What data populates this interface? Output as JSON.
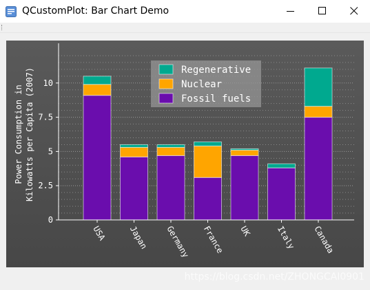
{
  "window": {
    "title": "QCustomPlot: Bar Chart Demo",
    "controls": [
      "minimize-icon",
      "maximize-icon",
      "close-icon"
    ]
  },
  "watermark": "https://blog.csdn.net/ZHONGCAI0901",
  "chart_data": {
    "type": "bar",
    "stacked": true,
    "categories": [
      "USA",
      "Japan",
      "Germany",
      "France",
      "UK",
      "Italy",
      "Canada"
    ],
    "series": [
      {
        "name": "Fossil fuels",
        "color": "#6a0dad",
        "values": [
          9.1,
          4.6,
          4.7,
          3.1,
          4.7,
          3.8,
          7.5
        ]
      },
      {
        "name": "Nuclear",
        "color": "#ffa500",
        "values": [
          0.8,
          0.7,
          0.6,
          2.3,
          0.4,
          0,
          0.8
        ]
      },
      {
        "name": "Regenerative",
        "color": "#00a98f",
        "values": [
          0.6,
          0.2,
          0.2,
          0.3,
          0.1,
          0.3,
          2.8
        ]
      }
    ],
    "legend": [
      "Regenerative",
      "Nuclear",
      "Fossil fuels"
    ],
    "legend_position": "top-center",
    "ylabel": "Power Consumption in\nKilowatts per Capita (2007)",
    "yticks": [
      "0",
      "2.5",
      "5",
      "7.5",
      "10"
    ],
    "ylim": [
      0,
      12.5
    ],
    "grid": true
  }
}
